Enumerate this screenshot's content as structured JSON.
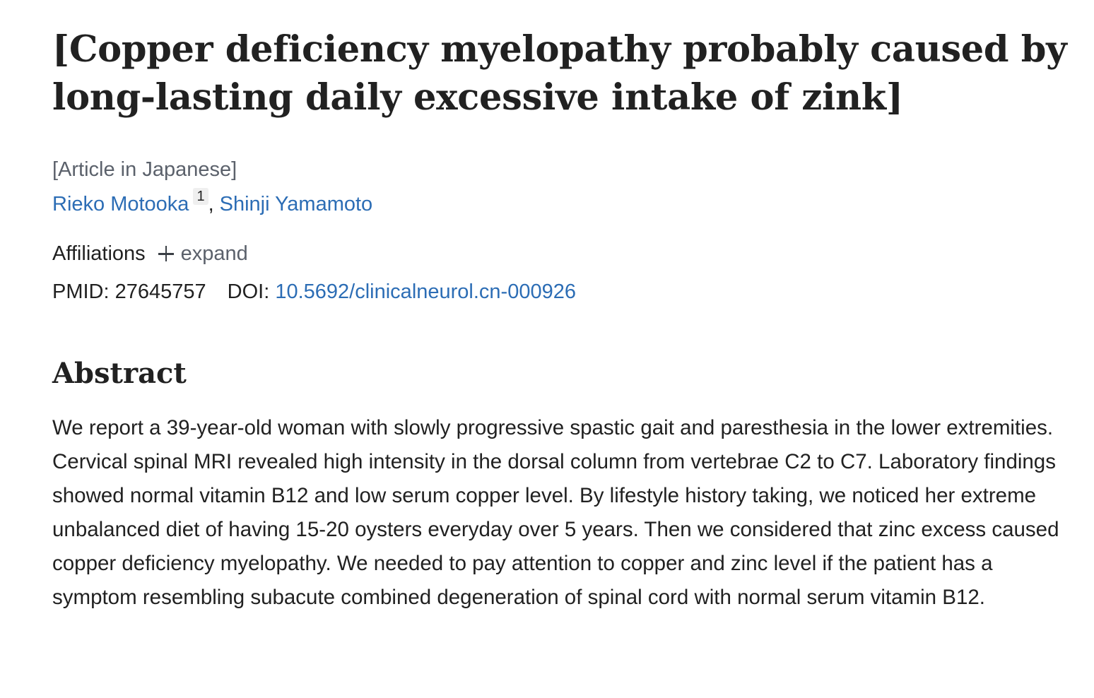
{
  "article": {
    "title": "[Copper deficiency myelopathy probably caused by long-lasting daily excessive intake of zink]",
    "language_note": "[Article in Japanese]",
    "authors": [
      {
        "name": "Rieko Motooka",
        "affiliation_ref": "1"
      },
      {
        "name": "Shinji Yamamoto"
      }
    ],
    "author_separator": ",",
    "affiliations_label": "Affiliations",
    "expand_label": "expand",
    "pmid_label": "PMID:",
    "pmid": "27645757",
    "doi_label": "DOI:",
    "doi": "10.5692/clinicalneurol.cn-000926"
  },
  "abstract": {
    "heading": "Abstract",
    "text": "We report a 39-year-old woman with slowly progressive spastic gait and paresthesia in the lower extremities. Cervical spinal MRI revealed high intensity in the dorsal column from vertebrae C2 to C7. Laboratory findings showed normal vitamin B12 and low serum copper level. By lifestyle history taking, we noticed her extreme unbalanced diet of having 15-20 oysters everyday over 5 years. Then we considered that zinc excess caused copper deficiency myelopathy. We needed to pay attention to copper and zinc level if the patient has a symptom resembling subacute combined degeneration of spinal cord with normal serum vitamin B12."
  },
  "colors": {
    "link": "#2c6db5",
    "text": "#212121",
    "muted": "#5b616b"
  },
  "icons": {
    "expand": "plus-icon"
  }
}
